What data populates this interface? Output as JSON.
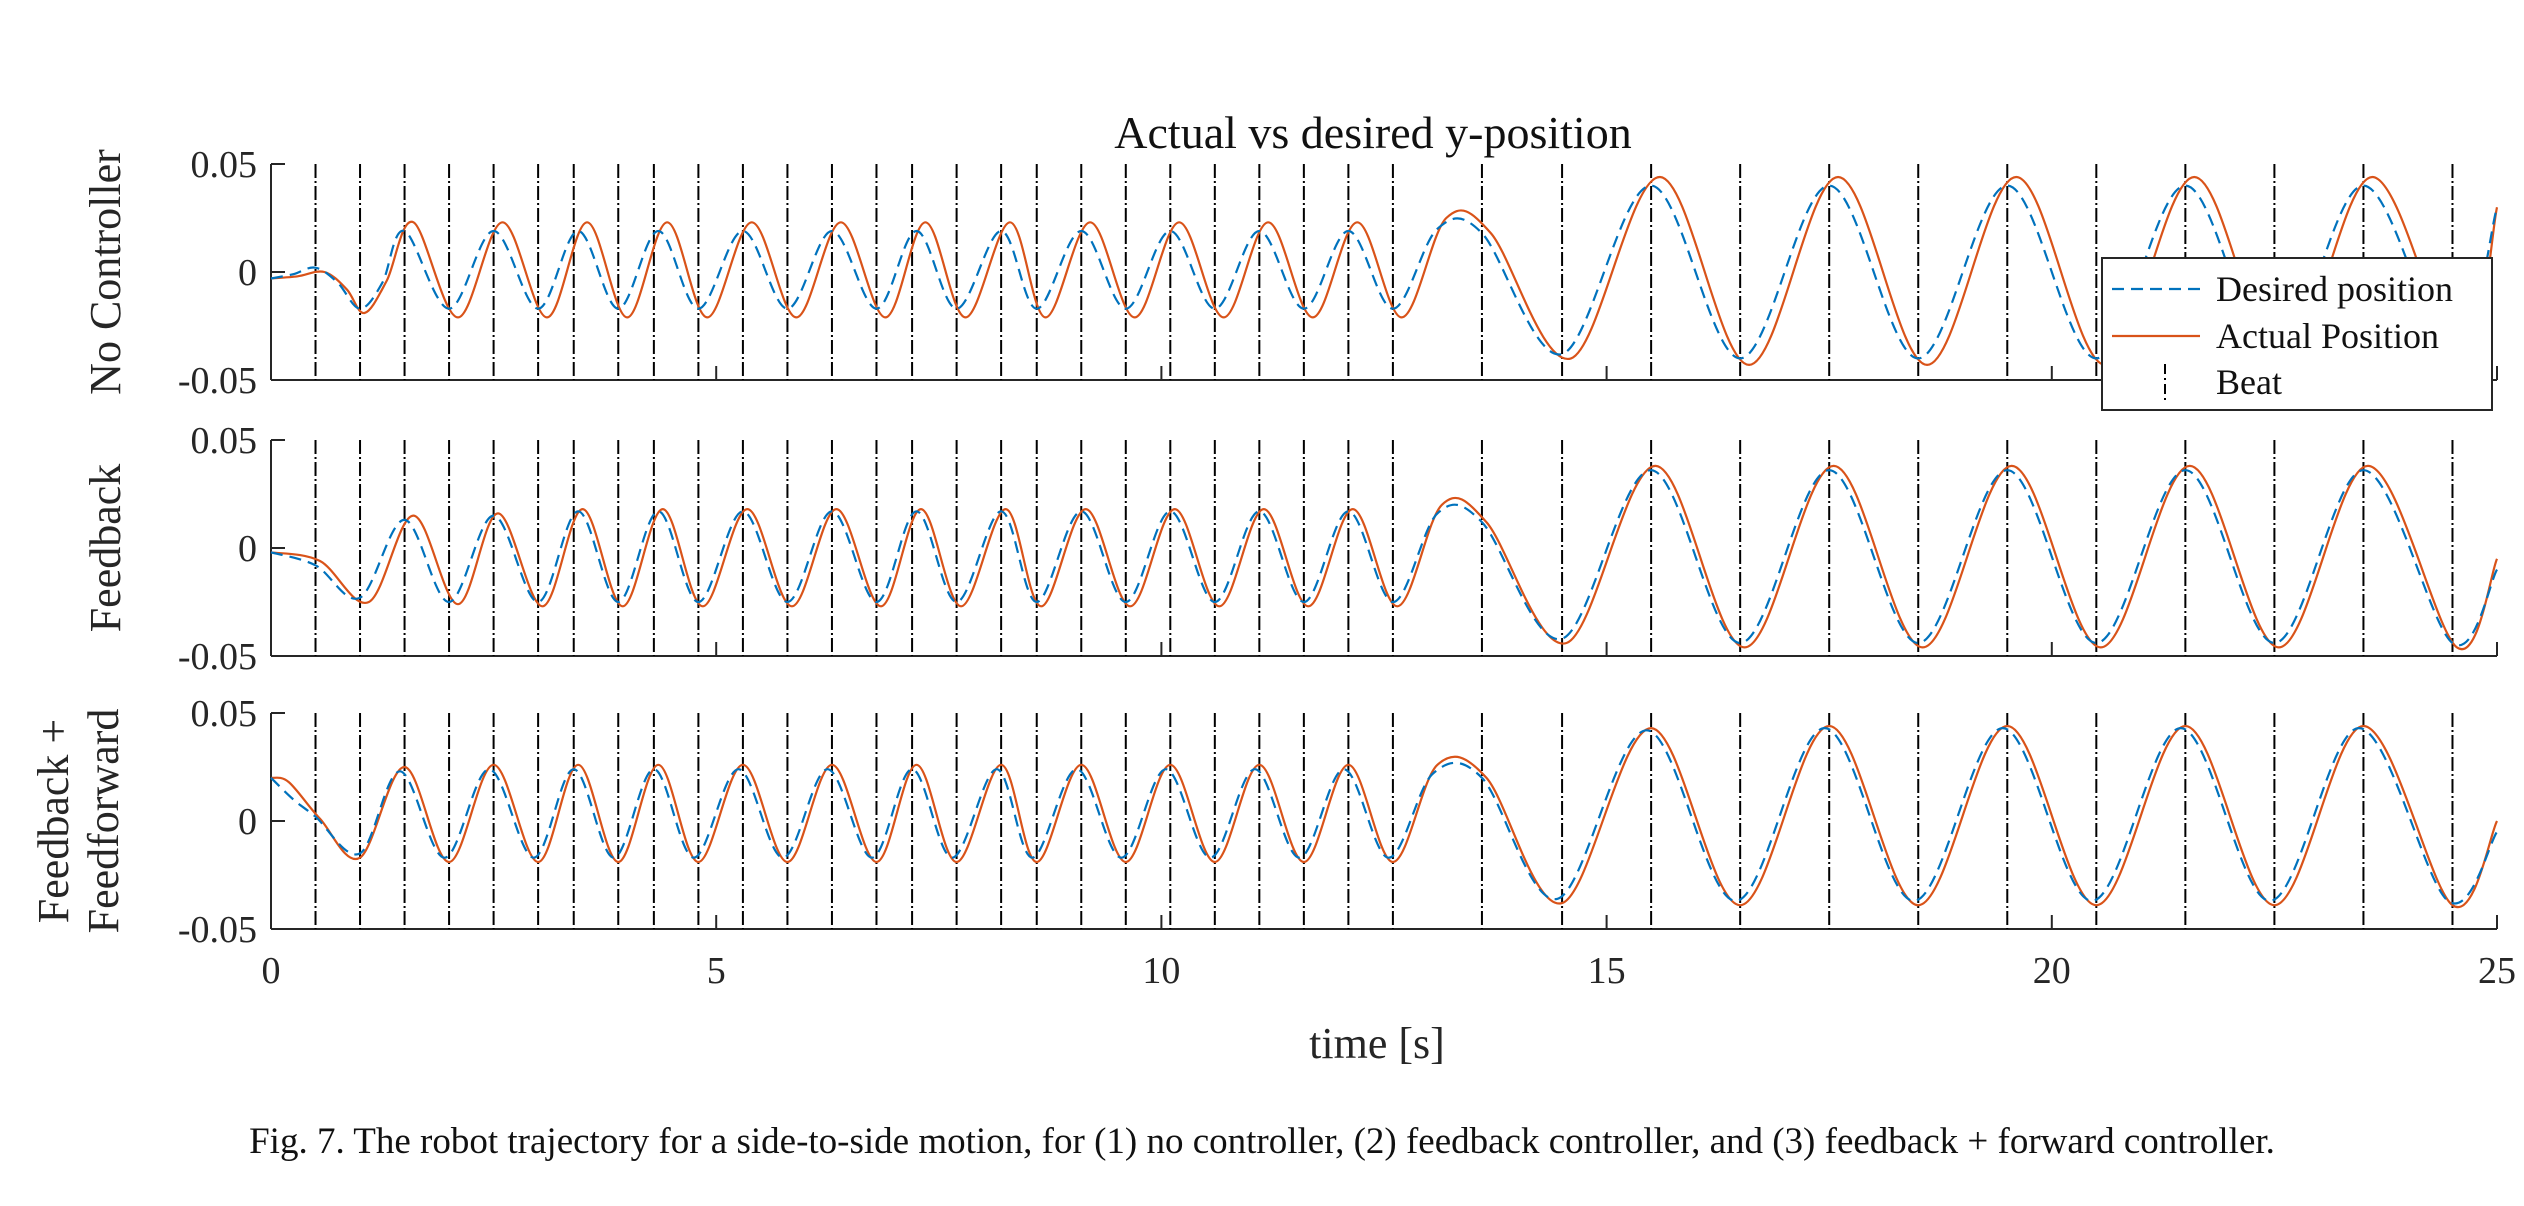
{
  "chart_data": {
    "type": "line",
    "title": "Actual vs desired y-position",
    "xlabel": "time [s]",
    "xlim": [
      0,
      25
    ],
    "xticks": [
      0,
      5,
      10,
      15,
      20,
      25
    ],
    "ylim": [
      -0.05,
      0.05
    ],
    "yticks": [
      0.05,
      0,
      -0.05
    ],
    "ytick_labels": [
      "0.05",
      "0",
      "-0.05"
    ],
    "beats": [
      0.5,
      1.0,
      1.5,
      2.0,
      2.5,
      3.0,
      3.4,
      3.9,
      4.3,
      4.8,
      5.3,
      5.8,
      6.3,
      6.8,
      7.2,
      7.7,
      8.2,
      8.6,
      9.1,
      9.6,
      10.1,
      10.6,
      11.1,
      11.6,
      12.1,
      12.6,
      13.6,
      14.5,
      15.5,
      16.5,
      17.5,
      18.5,
      19.5,
      20.5,
      21.5,
      22.5,
      23.5,
      24.5
    ],
    "legend": {
      "placement": "right, overlapping top panel",
      "entries": [
        "Desired position",
        "Actual Position",
        "Beat"
      ]
    },
    "series_styles": {
      "Desired position": {
        "color": "#0072BD",
        "dash": "dashed"
      },
      "Actual Position": {
        "color": "#D95319",
        "dash": "solid"
      },
      "Beat": {
        "color": "#000000",
        "dash": "dashdot"
      }
    },
    "panels": [
      {
        "ylabel": [
          "No Controller"
        ],
        "desired_x": [
          0,
          0.25,
          0.5,
          0.75,
          1.0,
          1.25,
          1.5,
          2.0,
          2.5,
          3.0,
          3.45,
          3.9,
          4.35,
          4.8,
          5.3,
          5.8,
          6.3,
          6.8,
          7.25,
          7.7,
          8.2,
          8.6,
          9.1,
          9.6,
          10.1,
          10.6,
          11.1,
          11.6,
          12.1,
          12.6,
          13.1,
          13.6,
          14.5,
          15.5,
          16.5,
          17.5,
          18.5,
          19.5,
          20.5,
          21.5,
          22.5,
          23.5,
          24.5,
          25
        ],
        "desired_y": [
          -0.003,
          -0.001,
          0.002,
          -0.005,
          -0.017,
          -0.005,
          0.019,
          -0.017,
          0.019,
          -0.017,
          0.019,
          -0.017,
          0.019,
          -0.017,
          0.019,
          -0.017,
          0.019,
          -0.017,
          0.019,
          -0.017,
          0.019,
          -0.017,
          0.019,
          -0.017,
          0.019,
          -0.017,
          0.019,
          -0.017,
          0.019,
          -0.017,
          0.02,
          0.018,
          -0.038,
          0.04,
          -0.04,
          0.04,
          -0.04,
          0.04,
          -0.04,
          0.04,
          -0.04,
          0.04,
          -0.04,
          0.03
        ],
        "actual_x": [
          0,
          0.3,
          0.6,
          0.85,
          1.05,
          1.3,
          1.6,
          2.1,
          2.6,
          3.1,
          3.55,
          4.0,
          4.45,
          4.9,
          5.4,
          5.9,
          6.4,
          6.9,
          7.35,
          7.8,
          8.3,
          8.7,
          9.2,
          9.7,
          10.2,
          10.7,
          11.2,
          11.7,
          12.2,
          12.7,
          13.2,
          13.7,
          14.6,
          15.6,
          16.6,
          17.6,
          18.6,
          19.6,
          20.6,
          21.6,
          22.6,
          23.6,
          24.6,
          25
        ],
        "actual_y": [
          -0.003,
          -0.002,
          0.0,
          -0.008,
          -0.019,
          -0.004,
          0.023,
          -0.021,
          0.023,
          -0.021,
          0.023,
          -0.021,
          0.023,
          -0.021,
          0.023,
          -0.021,
          0.023,
          -0.021,
          0.023,
          -0.021,
          0.023,
          -0.021,
          0.023,
          -0.021,
          0.023,
          -0.021,
          0.023,
          -0.021,
          0.023,
          -0.021,
          0.025,
          0.018,
          -0.04,
          0.044,
          -0.043,
          0.044,
          -0.043,
          0.044,
          -0.043,
          0.044,
          -0.043,
          0.044,
          -0.043,
          0.03
        ]
      },
      {
        "ylabel": [
          "Feedback"
        ],
        "desired_x": [
          0,
          0.5,
          1.0,
          1.5,
          2.0,
          2.5,
          3.0,
          3.45,
          3.9,
          4.35,
          4.8,
          5.3,
          5.8,
          6.3,
          6.8,
          7.25,
          7.7,
          8.2,
          8.6,
          9.1,
          9.6,
          10.1,
          10.6,
          11.1,
          11.6,
          12.1,
          12.6,
          13.1,
          13.6,
          14.5,
          15.5,
          16.5,
          17.5,
          18.5,
          19.5,
          20.5,
          21.5,
          22.5,
          23.5,
          24.5,
          25
        ],
        "desired_y": [
          -0.002,
          -0.008,
          -0.023,
          0.013,
          -0.025,
          0.015,
          -0.025,
          0.017,
          -0.025,
          0.017,
          -0.025,
          0.017,
          -0.025,
          0.017,
          -0.025,
          0.017,
          -0.025,
          0.017,
          -0.025,
          0.017,
          -0.025,
          0.017,
          -0.025,
          0.017,
          -0.025,
          0.017,
          -0.025,
          0.016,
          0.012,
          -0.042,
          0.036,
          -0.044,
          0.036,
          -0.044,
          0.036,
          -0.044,
          0.036,
          -0.044,
          0.036,
          -0.044,
          -0.01
        ],
        "actual_x": [
          0,
          0.55,
          1.1,
          1.6,
          2.1,
          2.55,
          3.05,
          3.5,
          3.95,
          4.4,
          4.85,
          5.35,
          5.85,
          6.35,
          6.85,
          7.3,
          7.75,
          8.25,
          8.65,
          9.15,
          9.65,
          10.15,
          10.65,
          11.15,
          11.65,
          12.15,
          12.65,
          13.15,
          13.65,
          14.55,
          15.55,
          16.55,
          17.55,
          18.55,
          19.55,
          20.55,
          21.55,
          22.55,
          23.55,
          24.55,
          25
        ],
        "actual_y": [
          -0.002,
          -0.006,
          -0.025,
          0.015,
          -0.026,
          0.016,
          -0.027,
          0.018,
          -0.027,
          0.018,
          -0.027,
          0.018,
          -0.027,
          0.018,
          -0.027,
          0.018,
          -0.027,
          0.018,
          -0.027,
          0.018,
          -0.027,
          0.018,
          -0.027,
          0.018,
          -0.027,
          0.018,
          -0.027,
          0.02,
          0.012,
          -0.044,
          0.038,
          -0.046,
          0.038,
          -0.046,
          0.038,
          -0.046,
          0.038,
          -0.046,
          0.038,
          -0.046,
          -0.005
        ]
      },
      {
        "ylabel": [
          "Feedback +",
          "Feedforward"
        ],
        "desired_x": [
          0,
          0.25,
          0.5,
          1.0,
          1.45,
          1.95,
          2.45,
          2.95,
          3.4,
          3.85,
          4.3,
          4.75,
          5.25,
          5.75,
          6.25,
          6.75,
          7.2,
          7.65,
          8.15,
          8.55,
          9.05,
          9.55,
          10.05,
          10.55,
          11.05,
          11.55,
          12.05,
          12.55,
          13.05,
          13.6,
          14.45,
          15.45,
          16.45,
          17.45,
          18.45,
          19.45,
          20.45,
          21.45,
          22.45,
          23.45,
          24.45,
          25
        ],
        "desired_y": [
          0.02,
          0.01,
          0.002,
          -0.015,
          0.023,
          -0.017,
          0.024,
          -0.017,
          0.024,
          -0.017,
          0.024,
          -0.017,
          0.024,
          -0.017,
          0.024,
          -0.017,
          0.024,
          -0.017,
          0.024,
          -0.017,
          0.024,
          -0.017,
          0.024,
          -0.017,
          0.024,
          -0.017,
          0.024,
          -0.017,
          0.022,
          0.02,
          -0.036,
          0.042,
          -0.037,
          0.043,
          -0.037,
          0.043,
          -0.037,
          0.043,
          -0.037,
          0.043,
          -0.037,
          -0.005
        ],
        "actual_x": [
          0,
          0.2,
          0.55,
          1.0,
          1.5,
          2.0,
          2.5,
          3.0,
          3.45,
          3.9,
          4.35,
          4.8,
          5.3,
          5.8,
          6.3,
          6.8,
          7.25,
          7.7,
          8.2,
          8.6,
          9.1,
          9.6,
          10.1,
          10.6,
          11.1,
          11.6,
          12.1,
          12.6,
          13.1,
          13.65,
          14.5,
          15.5,
          16.5,
          17.5,
          18.5,
          19.5,
          20.5,
          21.5,
          22.5,
          23.5,
          24.5,
          25
        ],
        "actual_y": [
          0.02,
          0.018,
          0.001,
          -0.017,
          0.025,
          -0.019,
          0.026,
          -0.019,
          0.026,
          -0.019,
          0.026,
          -0.019,
          0.026,
          -0.019,
          0.026,
          -0.019,
          0.026,
          -0.019,
          0.026,
          -0.019,
          0.026,
          -0.019,
          0.026,
          -0.019,
          0.026,
          -0.019,
          0.026,
          -0.019,
          0.026,
          0.02,
          -0.038,
          0.043,
          -0.039,
          0.044,
          -0.039,
          0.044,
          -0.039,
          0.044,
          -0.039,
          0.044,
          -0.039,
          0.0
        ]
      }
    ]
  },
  "caption": "Fig. 7.   The robot trajectory for a side-to-side motion, for (1) no controller, (2) feedback controller, and (3) feedback + forward controller."
}
